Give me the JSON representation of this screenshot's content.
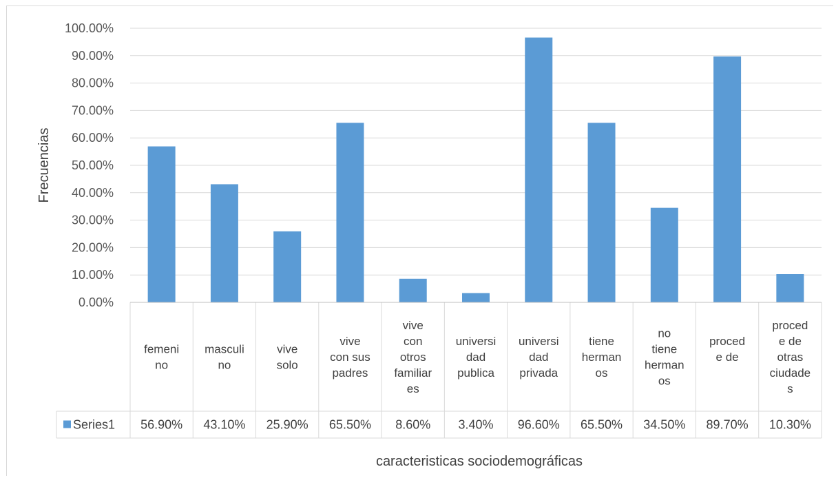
{
  "chart_data": {
    "type": "bar",
    "xlabel": "caracteristicas sociodemográficas",
    "ylabel": "Frecuencias",
    "ylim": [
      0,
      100
    ],
    "ytick_step": 10,
    "ytick_labels": [
      "0.00%",
      "10.00%",
      "20.00%",
      "30.00%",
      "40.00%",
      "50.00%",
      "60.00%",
      "70.00%",
      "80.00%",
      "90.00%",
      "100.00%"
    ],
    "grid": true,
    "legend_placement": "bottom-left in data table",
    "bar_color": "#5b9bd5",
    "categories": [
      [
        "femeni",
        "no"
      ],
      [
        "masculi",
        "no"
      ],
      [
        "vive",
        "solo"
      ],
      [
        "vive",
        "con sus",
        "padres"
      ],
      [
        "vive",
        "con",
        "otros",
        "familiar",
        "es"
      ],
      [
        "universi",
        "dad",
        "publica"
      ],
      [
        "universi",
        "dad",
        "privada"
      ],
      [
        "tiene",
        "herman",
        "os"
      ],
      [
        "no",
        "tiene",
        "herman",
        "os"
      ],
      [
        "proced",
        "e de",
        ""
      ],
      [
        "proced",
        "e de",
        "otras",
        "ciudade",
        "s"
      ]
    ],
    "series": [
      {
        "name": "Series1",
        "values": [
          56.9,
          43.1,
          25.9,
          65.5,
          8.6,
          3.4,
          96.6,
          65.5,
          34.5,
          89.7,
          10.3
        ],
        "labels": [
          "56.90%",
          "43.10%",
          "25.90%",
          "65.50%",
          "8.60%",
          "3.40%",
          "96.60%",
          "65.50%",
          "34.50%",
          "89.70%",
          "10.30%"
        ]
      }
    ]
  }
}
